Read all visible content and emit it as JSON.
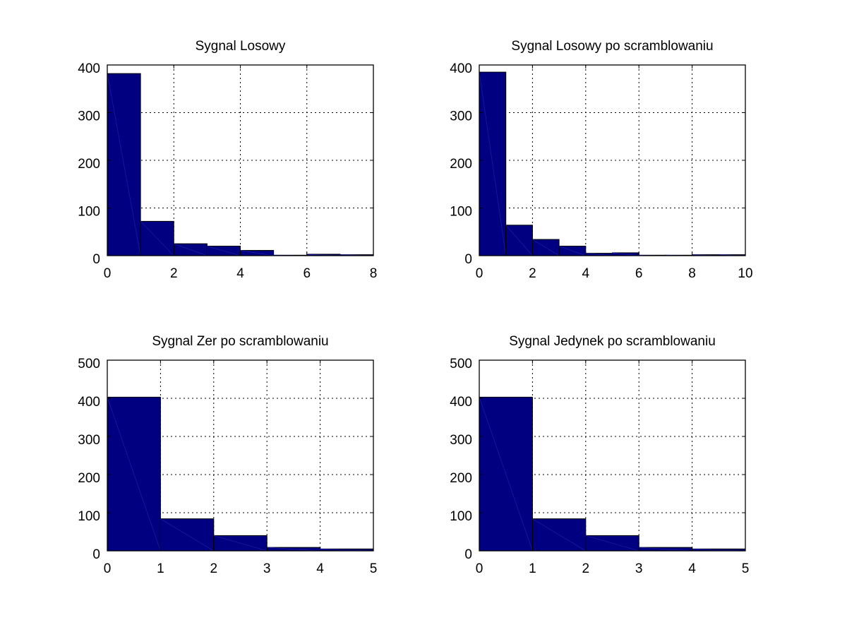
{
  "chart_data": [
    {
      "type": "bar",
      "title": "Sygnal Losowy",
      "xlim": [
        0,
        8
      ],
      "ylim": [
        0,
        400
      ],
      "xticks": [
        0,
        2,
        4,
        6,
        8
      ],
      "yticks": [
        0,
        100,
        200,
        300,
        400
      ],
      "grid": true,
      "bin_edges": [
        0,
        1,
        2,
        3,
        4,
        5,
        6,
        7,
        8
      ],
      "values": [
        382,
        72,
        25,
        20,
        11,
        1,
        3,
        2
      ]
    },
    {
      "type": "bar",
      "title": "Sygnal Losowy po scramblowaniu",
      "xlim": [
        0,
        10
      ],
      "ylim": [
        0,
        400
      ],
      "xticks": [
        0,
        2,
        4,
        6,
        8,
        10
      ],
      "yticks": [
        0,
        100,
        200,
        300,
        400
      ],
      "grid": true,
      "bin_edges": [
        0,
        1,
        2,
        3,
        4,
        5,
        6,
        7,
        8,
        9,
        10
      ],
      "values": [
        385,
        64,
        34,
        20,
        5,
        6,
        1,
        1,
        2,
        2
      ]
    },
    {
      "type": "bar",
      "title": "Sygnal Zer po scramblowaniu",
      "xlim": [
        0,
        5
      ],
      "ylim": [
        0,
        500
      ],
      "xticks": [
        0,
        1,
        2,
        3,
        4,
        5
      ],
      "yticks": [
        0,
        100,
        200,
        300,
        400,
        500
      ],
      "grid": true,
      "bin_edges": [
        0,
        1,
        2,
        3,
        4,
        5
      ],
      "values": [
        403,
        84,
        40,
        9,
        5
      ]
    },
    {
      "type": "bar",
      "title": "Sygnal Jedynek po scramblowaniu",
      "xlim": [
        0,
        5
      ],
      "ylim": [
        0,
        500
      ],
      "xticks": [
        0,
        1,
        2,
        3,
        4,
        5
      ],
      "yticks": [
        0,
        100,
        200,
        300,
        400,
        500
      ],
      "grid": true,
      "bin_edges": [
        0,
        1,
        2,
        3,
        4,
        5
      ],
      "values": [
        403,
        84,
        40,
        9,
        5
      ]
    }
  ],
  "colors": {
    "bar_fill": "#000080",
    "bar_edge": "#000000",
    "background": "#ffffff"
  }
}
